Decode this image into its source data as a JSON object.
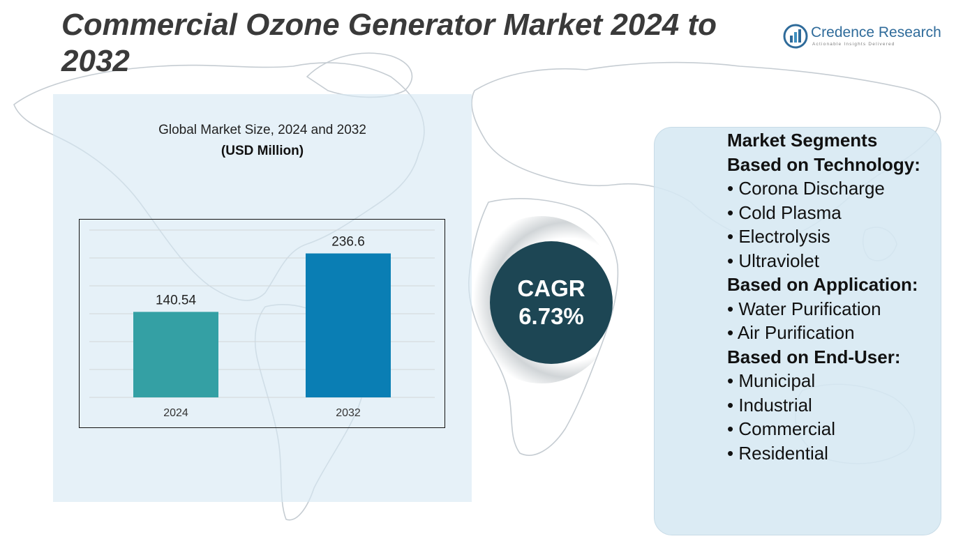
{
  "header": {
    "title": "Commercial Ozone Generator Market 2024 to 2032"
  },
  "logo": {
    "name": "Credence Research",
    "tagline": "Actionable Insights Delivered"
  },
  "chart_data": {
    "type": "bar",
    "title": "Global Market Size, 2024 and 2032",
    "unit_label": "(USD Million)",
    "categories": [
      "2024",
      "2032"
    ],
    "values": [
      140.54,
      236.6
    ],
    "data_labels": [
      "140.54",
      "236.6"
    ],
    "colors": [
      "#34a0a4",
      "#0a7eb4"
    ],
    "ylim": [
      0,
      275
    ],
    "grid": true,
    "xlabel": "",
    "ylabel": ""
  },
  "cagr": {
    "label": "CAGR",
    "value": "6.73%"
  },
  "segments": {
    "title": "Market Segments",
    "groups": [
      {
        "heading": "Based on Technology:",
        "items": [
          "Corona Discharge",
          "Cold Plasma",
          "Electrolysis",
          "Ultraviolet"
        ]
      },
      {
        "heading": "Based on Application:",
        "items": [
          "Water Purification",
          "Air Purification"
        ]
      },
      {
        "heading": "Based on End-User:",
        "items": [
          "Municipal",
          "Industrial",
          "Commercial",
          "Residential"
        ]
      }
    ]
  },
  "colors": {
    "panel_bg": "#d6e8f3",
    "cagr_bg": "#1d4654",
    "title_text": "#3a3a3a",
    "brand_blue": "#2f6b9a"
  }
}
